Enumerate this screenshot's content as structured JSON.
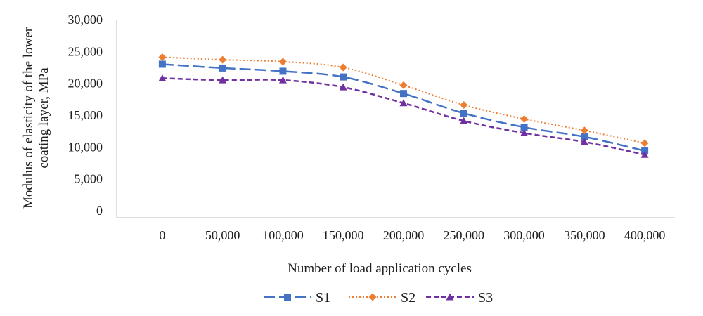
{
  "chart_data": {
    "type": "line",
    "title": "",
    "xlabel": "Number of load application cycles",
    "ylabel": "Modulus of elasticity of the lower coating layer,  MPa",
    "ylabel_lines": [
      "Modulus of elasticity of the lower",
      "coating layer,  MPa"
    ],
    "ylim": [
      0,
      30000
    ],
    "y_ticks": [
      "0",
      "5,000",
      "10,000",
      "15,000",
      "20,000",
      "25,000",
      "30,000"
    ],
    "y_tick_values": [
      0,
      5000,
      10000,
      15000,
      20000,
      25000,
      30000
    ],
    "categories": [
      "0",
      "50,000",
      "100,000",
      "150,000",
      "200,000",
      "250,000",
      "300,000",
      "350,000",
      "400,000"
    ],
    "grid": false,
    "legend_position": "bottom",
    "series": [
      {
        "name": "S1",
        "values": [
          23000,
          22400,
          21900,
          21000,
          18400,
          15300,
          13100,
          11600,
          9400
        ],
        "color": "#4472c4",
        "line_style": "long-dash",
        "marker": "square"
      },
      {
        "name": "S2",
        "values": [
          24100,
          23700,
          23400,
          22500,
          19700,
          16600,
          14400,
          12600,
          10600
        ],
        "color": "#ed7d31",
        "line_style": "dotted",
        "marker": "diamond"
      },
      {
        "name": "S3",
        "values": [
          20800,
          20500,
          20500,
          19400,
          16900,
          14100,
          12200,
          10800,
          8800
        ],
        "color": "#7030a0",
        "line_style": "dashed",
        "marker": "triangle"
      }
    ]
  }
}
